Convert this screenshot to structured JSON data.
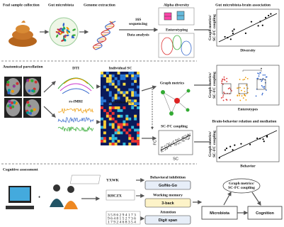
{
  "top": {
    "collection": "Feal sample collection",
    "microbiota": "Gut microbiota",
    "genome": "Genome extraction",
    "sequencing": [
      "16S",
      "sequencing"
    ],
    "analysis": "Data analysis",
    "alpha": "Alpha diversity",
    "enterotyping": "Enterotyping"
  },
  "middle": {
    "parcellation": "Anatomical parcellation",
    "dti": "DTI",
    "sc": "Individual SC",
    "graph": "Graph metrics",
    "fmri": "rs-fMRI",
    "fc": "Individual FC",
    "coupling": "SC-FC coupling",
    "fc_axis": "FC",
    "sc_axis": "SC"
  },
  "bottom": {
    "assessment": "Cognitive assessment",
    "inhibition": "Behavioral inhibition",
    "gonogo": "Go/No-Go",
    "working": "Working memory",
    "nback": "3-back",
    "attention": "Attention",
    "digit": "Digit span"
  },
  "right": {
    "association": "Gut microbiota-brain association",
    "ylabel1": [
      "Graph metrics/",
      "SC-FC coupling"
    ],
    "diversity": "Diversity",
    "ylabel2": [
      "Graph metrics/",
      "SC-FC coupling"
    ],
    "enterotypes": "Enterotypes",
    "star": "*",
    "relation": "Brain-behavior relation and mediation",
    "ylabel3": [
      "Graph metrics/",
      "SC-FC coupling"
    ],
    "behavior": "Behavior",
    "mediator": [
      "Graph metrics/",
      "SC-FC coupling"
    ],
    "microbiota": "Microbiota",
    "cognition": "Cognition"
  }
}
